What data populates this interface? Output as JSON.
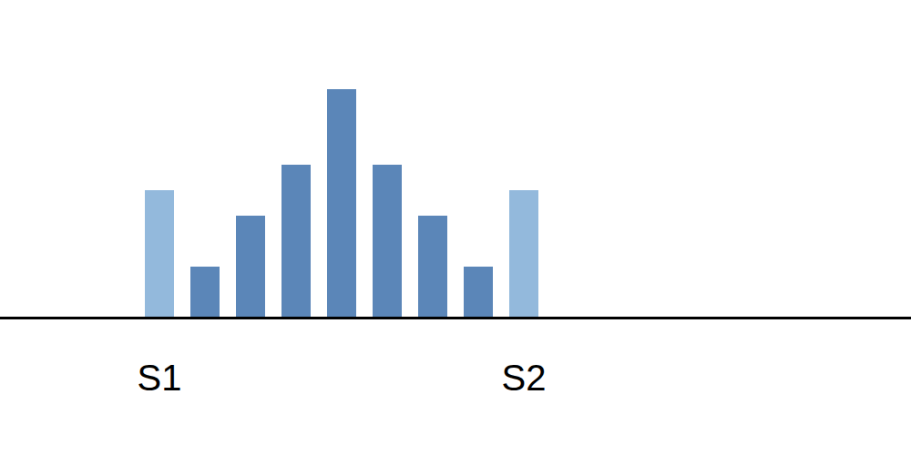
{
  "chart_data": {
    "type": "bar",
    "categories": [
      "S1",
      null,
      null,
      null,
      null,
      null,
      null,
      null,
      "S2"
    ],
    "values": [
      139,
      55,
      111,
      167,
      250,
      167,
      111,
      55,
      139
    ],
    "colors": [
      "#93b9dc",
      "#5b86b8",
      "#5b86b8",
      "#5b86b8",
      "#5b86b8",
      "#5b86b8",
      "#5b86b8",
      "#5b86b8",
      "#93b9dc"
    ],
    "ylim": [
      0,
      348
    ],
    "tick_labels": "x",
    "grid": false
  }
}
